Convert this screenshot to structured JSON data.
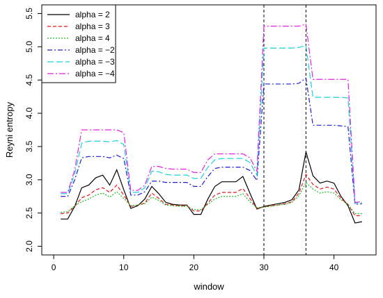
{
  "chart_data": {
    "type": "line",
    "title": "",
    "xlabel": "window",
    "ylabel": "Reyni entropy",
    "xlim": [
      -1.7,
      46.0
    ],
    "ylim": [
      1.87,
      5.63
    ],
    "xticks": [
      0,
      10,
      20,
      30,
      40
    ],
    "yticks": [
      2.0,
      2.5,
      3.0,
      3.5,
      4.0,
      4.5,
      5.0,
      5.5
    ],
    "grid": false,
    "legend": "top-left",
    "vlines": [
      30,
      36
    ],
    "x": [
      1,
      2,
      3,
      4,
      5,
      6,
      7,
      8,
      9,
      10,
      11,
      12,
      13,
      14,
      15,
      16,
      17,
      18,
      19,
      20,
      21,
      22,
      23,
      24,
      25,
      26,
      27,
      28,
      29,
      30,
      31,
      32,
      33,
      34,
      35,
      36,
      37,
      38,
      39,
      40,
      41,
      42,
      43,
      44
    ],
    "series": [
      {
        "name": "alpha = 2",
        "color": "#000000",
        "dash": "",
        "values": [
          2.41,
          2.41,
          2.6,
          2.88,
          2.92,
          3.03,
          3.07,
          2.92,
          3.15,
          2.85,
          2.57,
          2.61,
          2.71,
          2.9,
          2.79,
          2.66,
          2.63,
          2.62,
          2.62,
          2.48,
          2.48,
          2.71,
          2.9,
          2.97,
          2.97,
          2.97,
          3.05,
          2.8,
          2.56,
          2.6,
          2.62,
          2.64,
          2.66,
          2.7,
          2.85,
          3.42,
          3.06,
          2.95,
          2.98,
          2.95,
          2.75,
          2.61,
          2.35,
          2.37
        ]
      },
      {
        "name": "alpha = 3",
        "color": "#e8151a",
        "dash": "5,3",
        "values": [
          2.49,
          2.5,
          2.6,
          2.73,
          2.77,
          2.85,
          2.88,
          2.81,
          2.92,
          2.77,
          2.6,
          2.62,
          2.65,
          2.8,
          2.72,
          2.63,
          2.62,
          2.61,
          2.61,
          2.53,
          2.53,
          2.65,
          2.77,
          2.81,
          2.81,
          2.81,
          2.87,
          2.72,
          2.57,
          2.59,
          2.61,
          2.62,
          2.64,
          2.67,
          2.8,
          3.08,
          2.93,
          2.86,
          2.89,
          2.86,
          2.72,
          2.63,
          2.46,
          2.46
        ]
      },
      {
        "name": "alpha = 4",
        "color": "#1fb81f",
        "dash": "2,2",
        "values": [
          2.51,
          2.52,
          2.61,
          2.67,
          2.71,
          2.77,
          2.8,
          2.74,
          2.82,
          2.72,
          2.61,
          2.62,
          2.64,
          2.74,
          2.69,
          2.62,
          2.61,
          2.6,
          2.6,
          2.55,
          2.55,
          2.63,
          2.71,
          2.75,
          2.75,
          2.75,
          2.79,
          2.67,
          2.58,
          2.59,
          2.6,
          2.62,
          2.63,
          2.66,
          2.76,
          2.96,
          2.86,
          2.8,
          2.82,
          2.8,
          2.7,
          2.63,
          2.49,
          2.49
        ]
      },
      {
        "name": "alpha = −2",
        "color": "#1c1cd6",
        "dash": "7,3,2,3",
        "values": [
          2.75,
          2.75,
          3.0,
          3.33,
          3.35,
          3.35,
          3.35,
          3.33,
          3.37,
          3.32,
          2.77,
          2.77,
          2.82,
          2.98,
          2.98,
          2.96,
          2.96,
          2.96,
          2.96,
          2.9,
          2.9,
          3.05,
          3.17,
          3.19,
          3.19,
          3.19,
          3.19,
          3.14,
          2.99,
          4.44,
          4.44,
          4.44,
          4.44,
          4.44,
          4.45,
          4.53,
          3.82,
          3.82,
          3.82,
          3.82,
          3.81,
          3.8,
          2.63,
          2.64
        ]
      },
      {
        "name": "alpha = −3",
        "color": "#17d3d8",
        "dash": "9,4",
        "values": [
          2.79,
          2.79,
          3.09,
          3.55,
          3.58,
          3.58,
          3.58,
          3.57,
          3.59,
          3.53,
          2.81,
          2.81,
          2.88,
          3.13,
          3.12,
          3.08,
          3.07,
          3.07,
          3.07,
          3.02,
          3.02,
          3.19,
          3.3,
          3.32,
          3.32,
          3.32,
          3.32,
          3.26,
          3.07,
          4.98,
          4.98,
          4.98,
          4.98,
          4.98,
          4.99,
          5.02,
          4.24,
          4.24,
          4.24,
          4.24,
          4.24,
          4.23,
          2.65,
          2.66
        ]
      },
      {
        "name": "alpha = −4",
        "color": "#e321e3",
        "dash": "9,3,2,3",
        "values": [
          2.81,
          2.81,
          3.15,
          3.75,
          3.75,
          3.75,
          3.75,
          3.75,
          3.75,
          3.71,
          2.84,
          2.84,
          2.92,
          3.2,
          3.2,
          3.17,
          3.16,
          3.16,
          3.16,
          3.11,
          3.11,
          3.3,
          3.39,
          3.39,
          3.39,
          3.39,
          3.39,
          3.33,
          3.13,
          5.31,
          5.31,
          5.31,
          5.31,
          5.31,
          5.31,
          5.34,
          4.51,
          4.51,
          4.51,
          4.51,
          4.51,
          4.51,
          2.66,
          2.67
        ]
      }
    ]
  }
}
